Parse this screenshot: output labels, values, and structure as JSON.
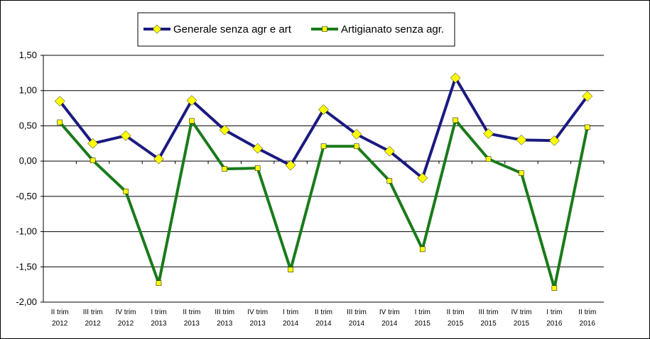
{
  "chart_data": {
    "type": "line",
    "categories": [
      [
        "II trim",
        "2012"
      ],
      [
        "III trim",
        "2012"
      ],
      [
        "IV trim",
        "2012"
      ],
      [
        "I trim",
        "2013"
      ],
      [
        "II trim",
        "2013"
      ],
      [
        "III trim",
        "2013"
      ],
      [
        "IV trim",
        "2013"
      ],
      [
        "I trim",
        "2014"
      ],
      [
        "II trim",
        "2014"
      ],
      [
        "III trim",
        "2014"
      ],
      [
        "IV trim",
        "2014"
      ],
      [
        "I trim",
        "2015"
      ],
      [
        "II trim",
        "2015"
      ],
      [
        "III trim",
        "2015"
      ],
      [
        "IV trim",
        "2015"
      ],
      [
        "I trim",
        "2016"
      ],
      [
        "II trim",
        "2016"
      ]
    ],
    "series": [
      {
        "name": "Generale senza agr e art",
        "color": "#1a1a80",
        "marker": "diamond",
        "marker_color": "#ffff00",
        "values": [
          0.85,
          0.25,
          0.36,
          0.03,
          0.86,
          0.44,
          0.18,
          -0.06,
          0.73,
          0.38,
          0.14,
          -0.24,
          1.18,
          0.39,
          0.3,
          0.29,
          0.92
        ]
      },
      {
        "name": "Artigianato senza agr.",
        "color": "#1a7a1a",
        "marker": "square",
        "marker_color": "#ffff00",
        "values": [
          0.55,
          0.01,
          -0.43,
          -1.73,
          0.57,
          -0.11,
          -0.1,
          -1.54,
          0.21,
          0.21,
          -0.28,
          -1.25,
          0.58,
          0.03,
          -0.17,
          -1.8,
          0.48
        ]
      }
    ],
    "y_ticks": [
      "1,50",
      "1,00",
      "0,50",
      "0,00",
      "-0,50",
      "-1,00",
      "-1,50",
      "-2,00"
    ],
    "ylim": [
      -2.0,
      1.5
    ],
    "grid": true,
    "plot_background": "#ffffff",
    "legend_placement": "top-center"
  }
}
